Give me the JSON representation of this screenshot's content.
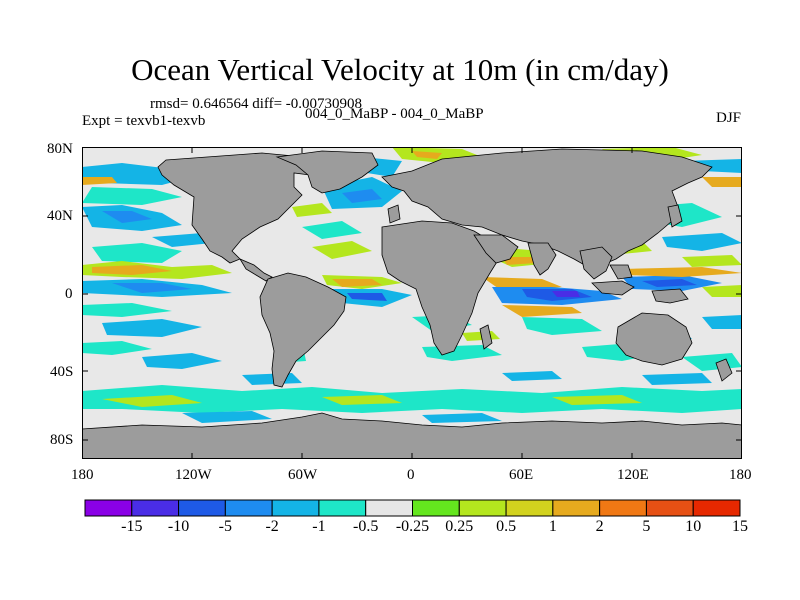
{
  "title": "Ocean Vertical Velocity at 10m (in cm/day)",
  "stats": {
    "rmsd_text": "rmsd= 0.646564 diff= -0.00730908"
  },
  "experiment": {
    "label": "Expt = texvb1-texvb"
  },
  "experiments_text": "004_0_MaBP - 004_0_MaBP",
  "season": "DJF",
  "axes": {
    "lat_ticks": [
      "80N",
      "40N",
      "0",
      "40S",
      "80S"
    ],
    "lon_ticks": [
      "180",
      "120W",
      "60W",
      "0",
      "60E",
      "120E",
      "180"
    ]
  },
  "colorbar": {
    "labels": [
      "-15",
      "-10",
      "-5",
      "-2",
      "-1",
      "-0.5",
      "-0.25",
      "0.25",
      "0.5",
      "1",
      "2",
      "5",
      "10",
      "15"
    ],
    "colors": [
      "#8a00e6",
      "#4a2de6",
      "#1e5ae6",
      "#1e8cf0",
      "#14b4e6",
      "#1ee6c8",
      "#e6e6e6",
      "#64e61e",
      "#b4e61e",
      "#d2d21e",
      "#e6aa1e",
      "#f07814",
      "#e65014",
      "#e62800"
    ]
  },
  "colors": {
    "land": "#9c9c9c",
    "neutral": "#e8e8e8",
    "frame": "#000000"
  }
}
